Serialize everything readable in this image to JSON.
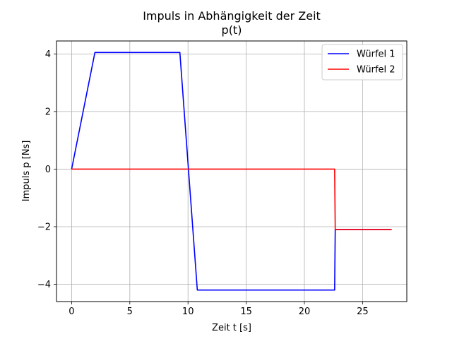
{
  "chart_data": {
    "type": "line",
    "title": "Impuls in Abhängigkeit der Zeit",
    "subtitle": "p(t)",
    "xlabel": "Zeit t [s]",
    "ylabel": "Impuls p [Ns]",
    "xlim": [
      -1.3,
      28.8
    ],
    "ylim": [
      -4.6,
      4.45
    ],
    "xticks": [
      0,
      5,
      10,
      15,
      20,
      25
    ],
    "yticks": [
      -4,
      -2,
      0,
      2,
      4
    ],
    "xtick_labels": [
      "0",
      "5",
      "10",
      "15",
      "20",
      "25"
    ],
    "ytick_labels": [
      "−4",
      "−2",
      "0",
      "2",
      "4"
    ],
    "grid": true,
    "legend_position": "top-right",
    "series": [
      {
        "name": "Würfel 1",
        "color": "#0000ff",
        "x": [
          0,
          2.0,
          9.3,
          10.8,
          22.6,
          22.65,
          27.5
        ],
        "y": [
          0,
          4.05,
          4.05,
          -4.2,
          -4.2,
          -2.1,
          -2.1
        ]
      },
      {
        "name": "Würfel 2",
        "color": "#ff0000",
        "x": [
          0,
          22.6,
          22.65,
          27.5
        ],
        "y": [
          0,
          0,
          -2.1,
          -2.1
        ]
      }
    ]
  }
}
